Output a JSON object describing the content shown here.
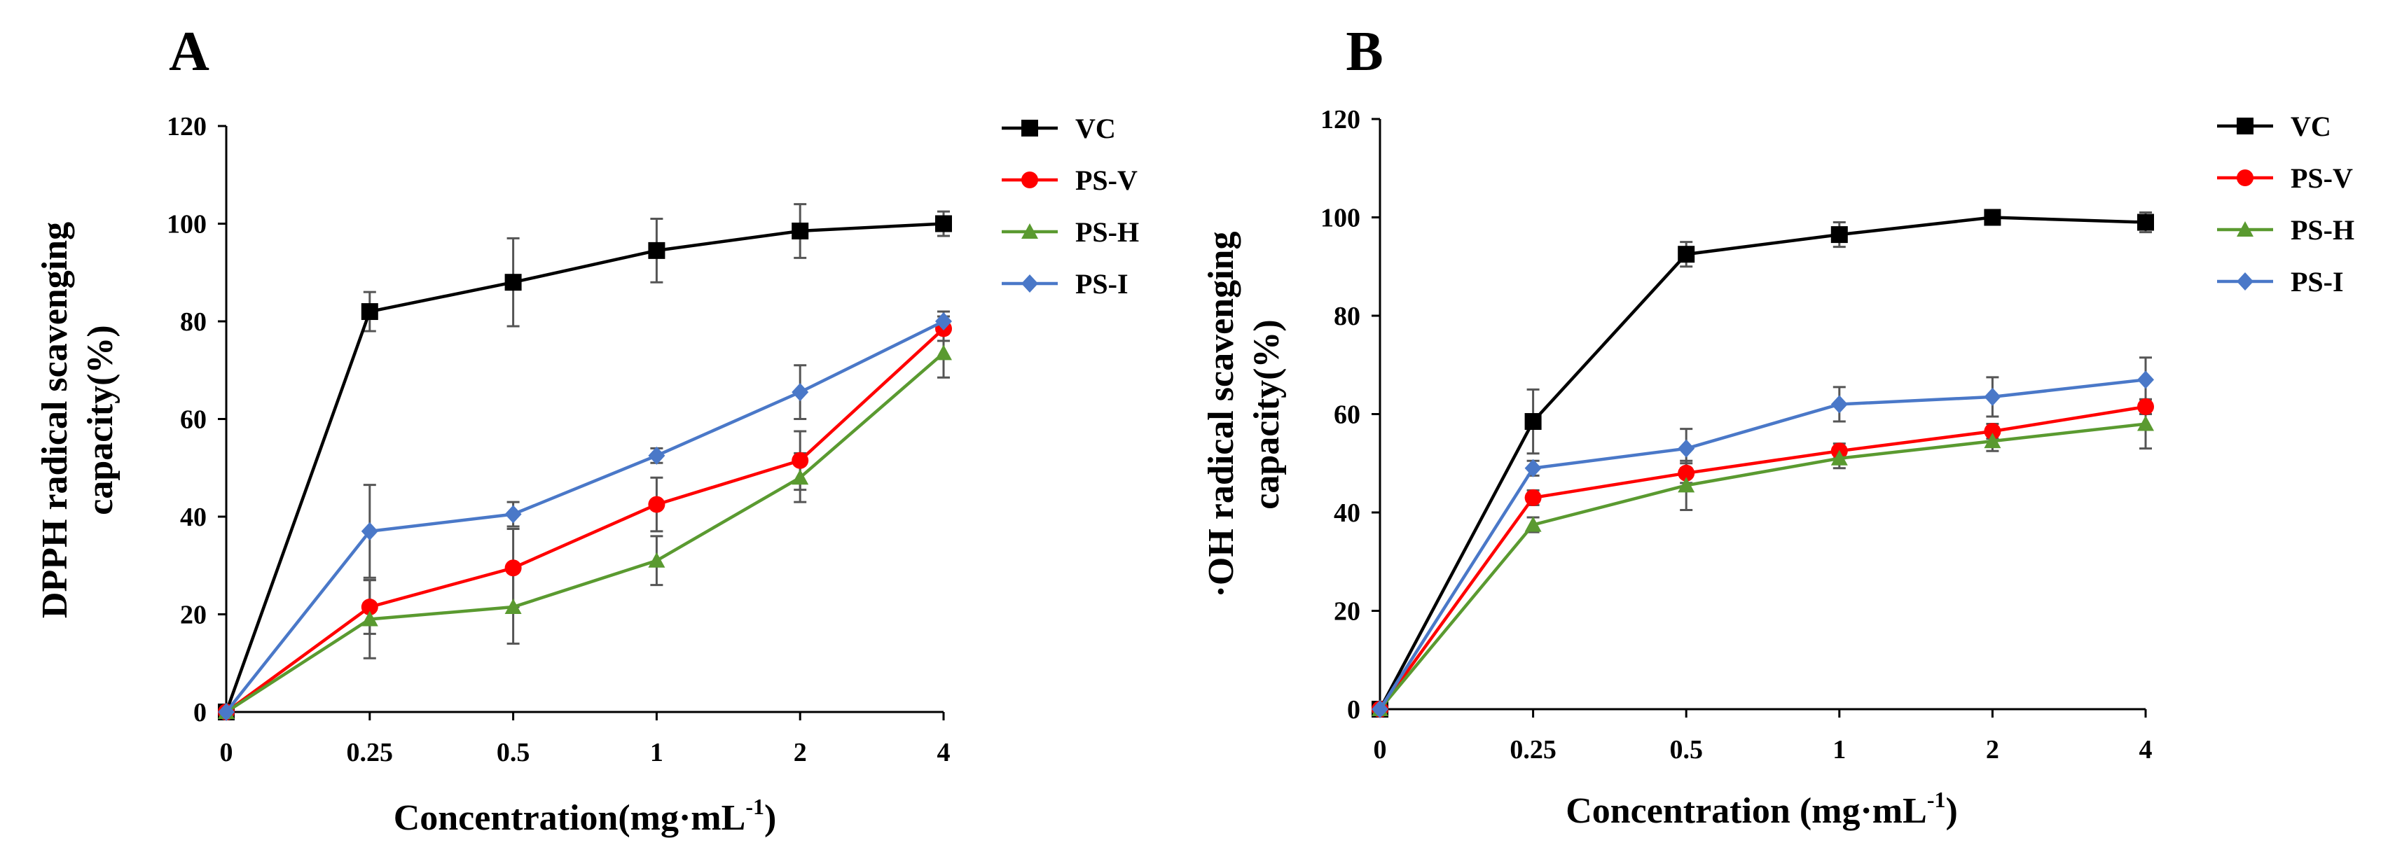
{
  "chart_data": [
    {
      "panel": "A",
      "type": "line",
      "categories": [
        "0",
        "0.25",
        "0.5",
        "1",
        "2",
        "4"
      ],
      "xlabel": "Concentration(mg·mL",
      "xlabel_sup": "-1",
      "xlabel_end": ")",
      "ylabel_line1": "DPPH radical scavenging",
      "ylabel_line2": "capacity(%)",
      "ylim": [
        0,
        120
      ],
      "yticks": [
        "0",
        "20",
        "40",
        "60",
        "80",
        "100",
        "120"
      ],
      "grid": false,
      "legend_position": "top-right",
      "series": [
        {
          "name": "VC",
          "color": "#000000",
          "marker": "square",
          "values": [
            0,
            82,
            88,
            94.5,
            98.5,
            100
          ],
          "errors": [
            0,
            4,
            9,
            6.5,
            5.5,
            2.5
          ]
        },
        {
          "name": "PS-V",
          "color": "#ff0000",
          "marker": "circle",
          "values": [
            0,
            21.5,
            29.5,
            42.5,
            51.5,
            78.5
          ],
          "errors": [
            0,
            5.5,
            8,
            5.5,
            6,
            2.5
          ]
        },
        {
          "name": "PS-H",
          "color": "#5a9a30",
          "marker": "triangle",
          "values": [
            0,
            19,
            21.5,
            31,
            48,
            73.5
          ],
          "errors": [
            0,
            8,
            7.5,
            5,
            5,
            5
          ]
        },
        {
          "name": "PS-I",
          "color": "#4a78c8",
          "marker": "diamond",
          "values": [
            0,
            37,
            40.5,
            52.5,
            65.5,
            80
          ],
          "errors": [
            0,
            9.5,
            2.5,
            1.5,
            5.5,
            2
          ]
        }
      ]
    },
    {
      "panel": "B",
      "type": "line",
      "categories": [
        "0",
        "0.25",
        "0.5",
        "1",
        "2",
        "4"
      ],
      "xlabel": "Concentration (mg·mL",
      "xlabel_sup": "-1",
      "xlabel_end": ")",
      "ylabel_line1": "·OH radical scavenging",
      "ylabel_line2": "capacity(%)",
      "ylim": [
        0,
        120
      ],
      "yticks": [
        "0",
        "20",
        "40",
        "60",
        "80",
        "100",
        "120"
      ],
      "grid": false,
      "legend_position": "top-right",
      "series": [
        {
          "name": "VC",
          "color": "#000000",
          "marker": "square",
          "values": [
            0,
            58.5,
            92.5,
            96.5,
            100,
            99
          ],
          "errors": [
            0,
            6.5,
            2.5,
            2.5,
            1,
            2
          ]
        },
        {
          "name": "PS-V",
          "color": "#ff0000",
          "marker": "circle",
          "values": [
            0,
            43,
            48,
            52.5,
            56.5,
            61.5
          ],
          "errors": [
            0,
            1.5,
            2,
            1.5,
            1.5,
            1.5
          ]
        },
        {
          "name": "PS-H",
          "color": "#5a9a30",
          "marker": "triangle",
          "values": [
            0,
            37.5,
            45.5,
            51,
            54.5,
            58
          ],
          "errors": [
            0,
            1.5,
            5,
            2,
            2,
            5
          ]
        },
        {
          "name": "PS-I",
          "color": "#4a78c8",
          "marker": "diamond",
          "values": [
            0,
            49,
            53,
            62,
            63.5,
            67
          ],
          "errors": [
            0,
            1.5,
            4,
            3.5,
            4,
            4.5
          ]
        }
      ]
    }
  ]
}
